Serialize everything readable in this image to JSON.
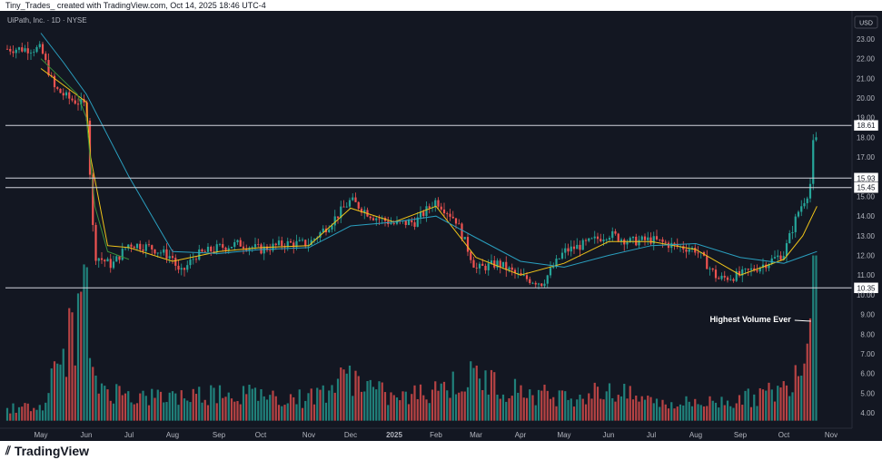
{
  "header": {
    "caption": "Tiny_Trades_ created with TradingView.com, Oct 14, 2025 18:46 UTC-4"
  },
  "footer": {
    "brand": "TradingView",
    "logo_icon": "tv-logo-icon"
  },
  "colors": {
    "background": "#131722",
    "up": "#26a69a",
    "down": "#ef5350",
    "ma_fast": "#f0c419",
    "ma_slow": "#2a9fbf",
    "ma_long": "#3a8f3a",
    "level_line": "#d1d4dc"
  },
  "chart_data": {
    "type": "candlestick",
    "symbol_label": "UiPath, Inc. · 1D · NYSE",
    "currency_label": "USD",
    "price_axis": {
      "min": 3.4,
      "max": 23.6,
      "ticks": [
        "23.00",
        "22.00",
        "21.00",
        "20.00",
        "19.00",
        "18.00",
        "17.00",
        "16.00",
        "15.00",
        "14.00",
        "13.00",
        "12.00",
        "11.00",
        "10.00",
        "9.00",
        "8.00",
        "7.00",
        "6.00",
        "5.00",
        "4.00"
      ]
    },
    "time_axis": {
      "labels": [
        "May",
        "Jun",
        "Jul",
        "Aug",
        "Sep",
        "Oct",
        "Nov",
        "Dec",
        "2025",
        "Feb",
        "Mar",
        "Apr",
        "May",
        "Jun",
        "Jul",
        "Aug",
        "Sep",
        "Oct",
        "Nov"
      ]
    },
    "horizontal_levels": [
      18.61,
      15.93,
      15.45,
      10.35
    ],
    "annotation": {
      "text": "Highest Volume Ever",
      "target_month": "Oct"
    },
    "price_path": [
      [
        "May",
        0,
        22.5
      ],
      [
        "May",
        0.3,
        20.5
      ],
      [
        "May",
        0.6,
        20.0
      ],
      [
        "May",
        1.0,
        19.6
      ],
      [
        "Jun",
        0,
        19.6
      ],
      [
        "Jun",
        0.05,
        18.0
      ],
      [
        "Jun",
        0.12,
        14.5
      ],
      [
        "Jun",
        0.2,
        12.0
      ],
      [
        "Jun",
        0.6,
        11.5
      ],
      [
        "Jul",
        0,
        12.6
      ],
      [
        "Jul",
        0.5,
        12.4
      ],
      [
        "Aug",
        0,
        11.9
      ],
      [
        "Aug",
        0.15,
        11.0
      ],
      [
        "Aug",
        0.5,
        12.0
      ],
      [
        "Sep",
        0,
        12.4
      ],
      [
        "Sep",
        0.5,
        12.6
      ],
      [
        "Oct",
        0,
        12.3
      ],
      [
        "Oct",
        0.5,
        12.6
      ],
      [
        "Nov",
        0,
        12.6
      ],
      [
        "Nov",
        0.5,
        13.6
      ],
      [
        "Dec",
        0,
        14.8
      ],
      [
        "Dec",
        0.5,
        14.0
      ],
      [
        "2025",
        0,
        13.6
      ],
      [
        "2025",
        0.5,
        13.7
      ],
      [
        "Feb",
        0,
        14.8
      ],
      [
        "Feb",
        0.5,
        13.8
      ],
      [
        "Mar",
        0,
        11.3
      ],
      [
        "Mar",
        0.5,
        11.6
      ],
      [
        "Apr",
        0,
        10.9
      ],
      [
        "Apr",
        0.5,
        10.6
      ],
      [
        "May",
        0,
        12.2
      ],
      [
        "May",
        0.5,
        12.6
      ],
      [
        "Jun",
        0,
        13.1
      ],
      [
        "Jun",
        0.5,
        12.7
      ],
      [
        "Jul",
        0,
        12.8
      ],
      [
        "Jul",
        0.5,
        12.5
      ],
      [
        "Aug",
        0,
        12.3
      ],
      [
        "Aug",
        0.5,
        10.8
      ],
      [
        "Sep",
        0,
        11.0
      ],
      [
        "Sep",
        0.5,
        11.5
      ],
      [
        "Oct",
        0,
        12.1
      ],
      [
        "Oct",
        0.3,
        14.2
      ],
      [
        "Oct",
        0.55,
        15.4
      ],
      [
        "Oct",
        0.65,
        18.6
      ],
      [
        "Oct",
        0.72,
        17.0
      ]
    ],
    "ma_fast_path": [
      [
        "May",
        0,
        21.5
      ],
      [
        "May",
        1.0,
        19.8
      ],
      [
        "Jun",
        0.1,
        17.0
      ],
      [
        "Jun",
        0.5,
        12.5
      ],
      [
        "Jul",
        0,
        12.4
      ],
      [
        "Aug",
        0,
        11.7
      ],
      [
        "Sep",
        0,
        12.2
      ],
      [
        "Oct",
        0,
        12.4
      ],
      [
        "Nov",
        0,
        12.5
      ],
      [
        "Dec",
        0,
        14.4
      ],
      [
        "2025",
        0,
        13.7
      ],
      [
        "Feb",
        0,
        14.5
      ],
      [
        "Mar",
        0,
        11.9
      ],
      [
        "Apr",
        0,
        11.0
      ],
      [
        "May",
        0,
        11.6
      ],
      [
        "Jun",
        0,
        12.7
      ],
      [
        "Jul",
        0,
        12.7
      ],
      [
        "Aug",
        0,
        12.3
      ],
      [
        "Sep",
        0,
        11.0
      ],
      [
        "Oct",
        0,
        11.8
      ],
      [
        "Oct",
        0.4,
        13.0
      ],
      [
        "Oct",
        0.7,
        14.5
      ]
    ],
    "ma_slow_path": [
      [
        "May",
        0,
        23.3
      ],
      [
        "May",
        0.5,
        21.8
      ],
      [
        "Jun",
        0,
        20.2
      ],
      [
        "Jul",
        0,
        16.0
      ],
      [
        "Aug",
        0,
        12.2
      ],
      [
        "Sep",
        0,
        12.1
      ],
      [
        "Oct",
        0,
        12.3
      ],
      [
        "Nov",
        0,
        12.4
      ],
      [
        "Dec",
        0,
        13.5
      ],
      [
        "2025",
        0,
        13.7
      ],
      [
        "Feb",
        0,
        14.0
      ],
      [
        "Mar",
        0,
        12.9
      ],
      [
        "Apr",
        0,
        11.7
      ],
      [
        "May",
        0,
        11.4
      ],
      [
        "Jun",
        0,
        12.0
      ],
      [
        "Jul",
        0,
        12.5
      ],
      [
        "Aug",
        0,
        12.6
      ],
      [
        "Sep",
        0,
        11.9
      ],
      [
        "Oct",
        0,
        11.6
      ],
      [
        "Oct",
        0.7,
        12.2
      ]
    ],
    "ma_long_path": [
      [
        "May",
        0,
        22.0
      ],
      [
        "May",
        0.8,
        20.2
      ],
      [
        "Jun",
        0,
        19.0
      ],
      [
        "Jun",
        0.2,
        14.5
      ],
      [
        "Jun",
        0.5,
        12.2
      ],
      [
        "Jul",
        0,
        11.8
      ]
    ],
    "volume_path": [
      [
        "May",
        0,
        0.8
      ],
      [
        "Jun",
        0,
        7.8
      ],
      [
        "Jun",
        0.1,
        2.5
      ],
      [
        "Jul",
        0,
        1.5
      ],
      [
        "Aug",
        0,
        1.5
      ],
      [
        "Sep",
        0,
        1.8
      ],
      [
        "Oct",
        0,
        1.6
      ],
      [
        "Nov",
        0,
        1.4
      ],
      [
        "Dec",
        0,
        2.8
      ],
      [
        "2025",
        0,
        1.3
      ],
      [
        "Feb",
        0,
        2.0
      ],
      [
        "Mar",
        0,
        2.8
      ],
      [
        "Apr",
        0,
        1.8
      ],
      [
        "May",
        0,
        1.5
      ],
      [
        "Jun",
        0,
        1.9
      ],
      [
        "Jul",
        0,
        1.2
      ],
      [
        "Aug",
        0,
        1.1
      ],
      [
        "Sep",
        0,
        1.3
      ],
      [
        "Oct",
        0,
        2.0
      ],
      [
        "Oct",
        0.55,
        5.2
      ],
      [
        "Oct",
        0.65,
        8.4
      ],
      [
        "Oct",
        0.8,
        3.6
      ]
    ]
  }
}
